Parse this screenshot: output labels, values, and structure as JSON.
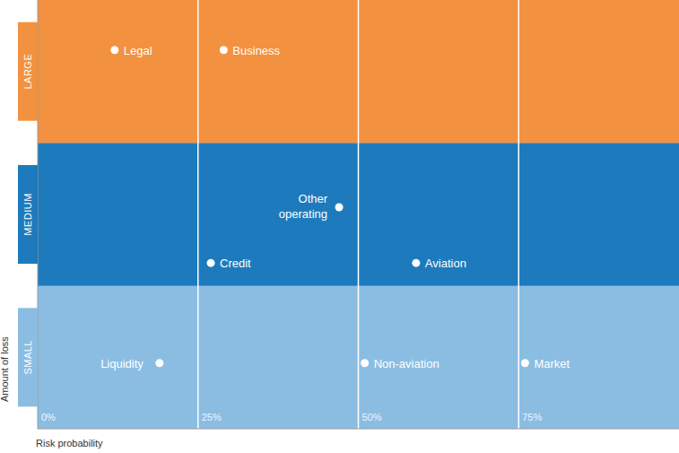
{
  "chart_data": {
    "type": "scatter",
    "x_label": "Risk probability",
    "y_label": "Amount of loss",
    "xlim": [
      0,
      100
    ],
    "xticks": [
      {
        "value": 0,
        "label": "0%"
      },
      {
        "value": 25,
        "label": "25%"
      },
      {
        "value": 50,
        "label": "50%"
      },
      {
        "value": 75,
        "label": "75%"
      }
    ],
    "ylim": [
      0,
      3
    ],
    "yticks": [
      {
        "value": 0.5,
        "label": "SMALL"
      },
      {
        "value": 1.5,
        "label": "MEDIUM"
      },
      {
        "value": 2.5,
        "label": "LARGE"
      }
    ],
    "bands": [
      {
        "from": 0,
        "to": 1,
        "color": "#8bbde3"
      },
      {
        "from": 1,
        "to": 2,
        "color": "#1d7bbd"
      },
      {
        "from": 2,
        "to": 3,
        "color": "#f29140"
      }
    ],
    "grid": true,
    "color": "#ffffff",
    "marker": "circle",
    "points": [
      {
        "label": "Legal",
        "x": 12,
        "y": 2.65
      },
      {
        "label": "Business",
        "x": 29,
        "y": 2.65
      },
      {
        "label": "Other operating",
        "x": 47,
        "y": 1.55
      },
      {
        "label": "Credit",
        "x": 27,
        "y": 1.16
      },
      {
        "label": "Aviation",
        "x": 59,
        "y": 1.16
      },
      {
        "label": "Liquidity",
        "x": 19,
        "y": 0.46
      },
      {
        "label": "Non-aviation",
        "x": 51,
        "y": 0.46
      },
      {
        "label": "Market",
        "x": 76,
        "y": 0.46
      }
    ]
  }
}
